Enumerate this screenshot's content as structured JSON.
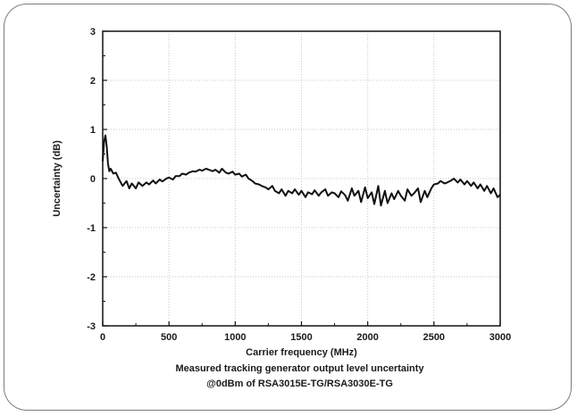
{
  "chart_data": {
    "type": "line",
    "xlabel": "Carrier frequency (MHz)",
    "ylabel": "Uncertainty (dB)",
    "caption_line1": "Measured tracking generator output level uncertainty",
    "caption_line2": "@0dBm of RSA3015E-TG/RSA3030E-TG",
    "xlim": [
      0,
      3000
    ],
    "ylim": [
      -3,
      3
    ],
    "xticks": [
      0,
      500,
      1000,
      1500,
      2000,
      2500,
      3000
    ],
    "yticks": [
      -3,
      -2,
      -1,
      0,
      1,
      2,
      3
    ],
    "grid": true,
    "line_color": "#111111",
    "grid_color": "#c8c8c8",
    "series": [
      {
        "x": [
          0,
          10,
          20,
          30,
          40,
          50,
          60,
          80,
          100,
          120,
          150,
          180,
          200,
          220,
          250,
          270,
          300,
          330,
          350,
          380,
          400,
          430,
          450,
          480,
          500,
          530,
          550,
          580,
          600,
          630,
          650,
          680,
          700,
          730,
          750,
          780,
          800,
          830,
          850,
          880,
          900,
          930,
          950,
          980,
          1000,
          1030,
          1050,
          1080,
          1100,
          1130,
          1150,
          1180,
          1200,
          1230,
          1250,
          1280,
          1300,
          1330,
          1350,
          1380,
          1400,
          1430,
          1450,
          1480,
          1500,
          1530,
          1550,
          1580,
          1600,
          1630,
          1650,
          1680,
          1700,
          1730,
          1750,
          1780,
          1800,
          1830,
          1850,
          1880,
          1900,
          1930,
          1950,
          1980,
          2000,
          2030,
          2050,
          2080,
          2100,
          2130,
          2150,
          2180,
          2200,
          2230,
          2250,
          2280,
          2300,
          2330,
          2350,
          2380,
          2400,
          2430,
          2450,
          2480,
          2500,
          2530,
          2550,
          2580,
          2600,
          2630,
          2650,
          2680,
          2700,
          2730,
          2750,
          2780,
          2800,
          2830,
          2850,
          2880,
          2900,
          2930,
          2950,
          2980,
          3000
        ],
        "y": [
          0.35,
          0.75,
          0.88,
          0.65,
          0.3,
          0.15,
          0.2,
          0.1,
          0.12,
          0.0,
          -0.15,
          -0.05,
          -0.2,
          -0.1,
          -0.2,
          -0.08,
          -0.15,
          -0.08,
          -0.12,
          -0.04,
          -0.1,
          -0.02,
          -0.06,
          0.0,
          0.02,
          -0.02,
          0.05,
          0.05,
          0.1,
          0.08,
          0.12,
          0.15,
          0.14,
          0.18,
          0.16,
          0.2,
          0.18,
          0.15,
          0.18,
          0.12,
          0.2,
          0.12,
          0.1,
          0.14,
          0.08,
          0.1,
          0.04,
          0.08,
          0.0,
          -0.05,
          -0.1,
          -0.12,
          -0.15,
          -0.18,
          -0.22,
          -0.15,
          -0.25,
          -0.3,
          -0.22,
          -0.35,
          -0.25,
          -0.3,
          -0.22,
          -0.33,
          -0.25,
          -0.38,
          -0.28,
          -0.32,
          -0.24,
          -0.35,
          -0.28,
          -0.22,
          -0.35,
          -0.28,
          -0.3,
          -0.38,
          -0.26,
          -0.34,
          -0.45,
          -0.2,
          -0.35,
          -0.25,
          -0.48,
          -0.18,
          -0.4,
          -0.28,
          -0.52,
          -0.15,
          -0.55,
          -0.25,
          -0.5,
          -0.3,
          -0.42,
          -0.25,
          -0.35,
          -0.45,
          -0.22,
          -0.35,
          -0.3,
          -0.2,
          -0.48,
          -0.25,
          -0.38,
          -0.2,
          -0.12,
          -0.1,
          -0.05,
          -0.1,
          -0.08,
          -0.04,
          0.0,
          -0.08,
          -0.02,
          -0.12,
          -0.05,
          -0.15,
          -0.08,
          -0.2,
          -0.12,
          -0.25,
          -0.15,
          -0.3,
          -0.2,
          -0.38,
          -0.33
        ]
      }
    ]
  }
}
